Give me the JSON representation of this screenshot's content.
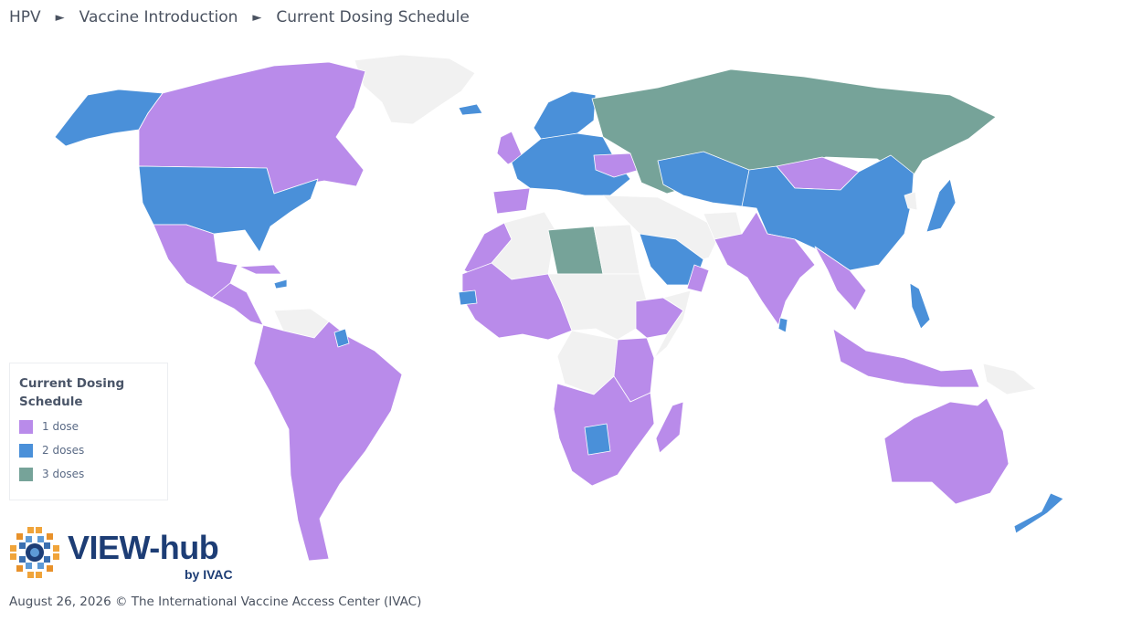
{
  "breadcrumb": {
    "items": [
      "HPV",
      "Vaccine Introduction",
      "Current Dosing Schedule"
    ],
    "separator": "►"
  },
  "legend": {
    "title": "Current Dosing Schedule",
    "items": [
      {
        "label": "1 dose",
        "color": "#b98bea"
      },
      {
        "label": "2 doses",
        "color": "#4a90d9"
      },
      {
        "label": "3 doses",
        "color": "#76a399"
      }
    ]
  },
  "map": {
    "colors": {
      "one_dose": "#b98bea",
      "two_doses": "#4a90d9",
      "three_doses": "#76a399",
      "no_data": "#f1f1f1",
      "border": "#ffffff"
    }
  },
  "logo": {
    "text": "VIEW-hub",
    "subtext": "by IVAC",
    "icon": "view-hub-logo-icon"
  },
  "footer": {
    "text": "August 26, 2026 © The International Vaccine Access Center (IVAC)"
  }
}
